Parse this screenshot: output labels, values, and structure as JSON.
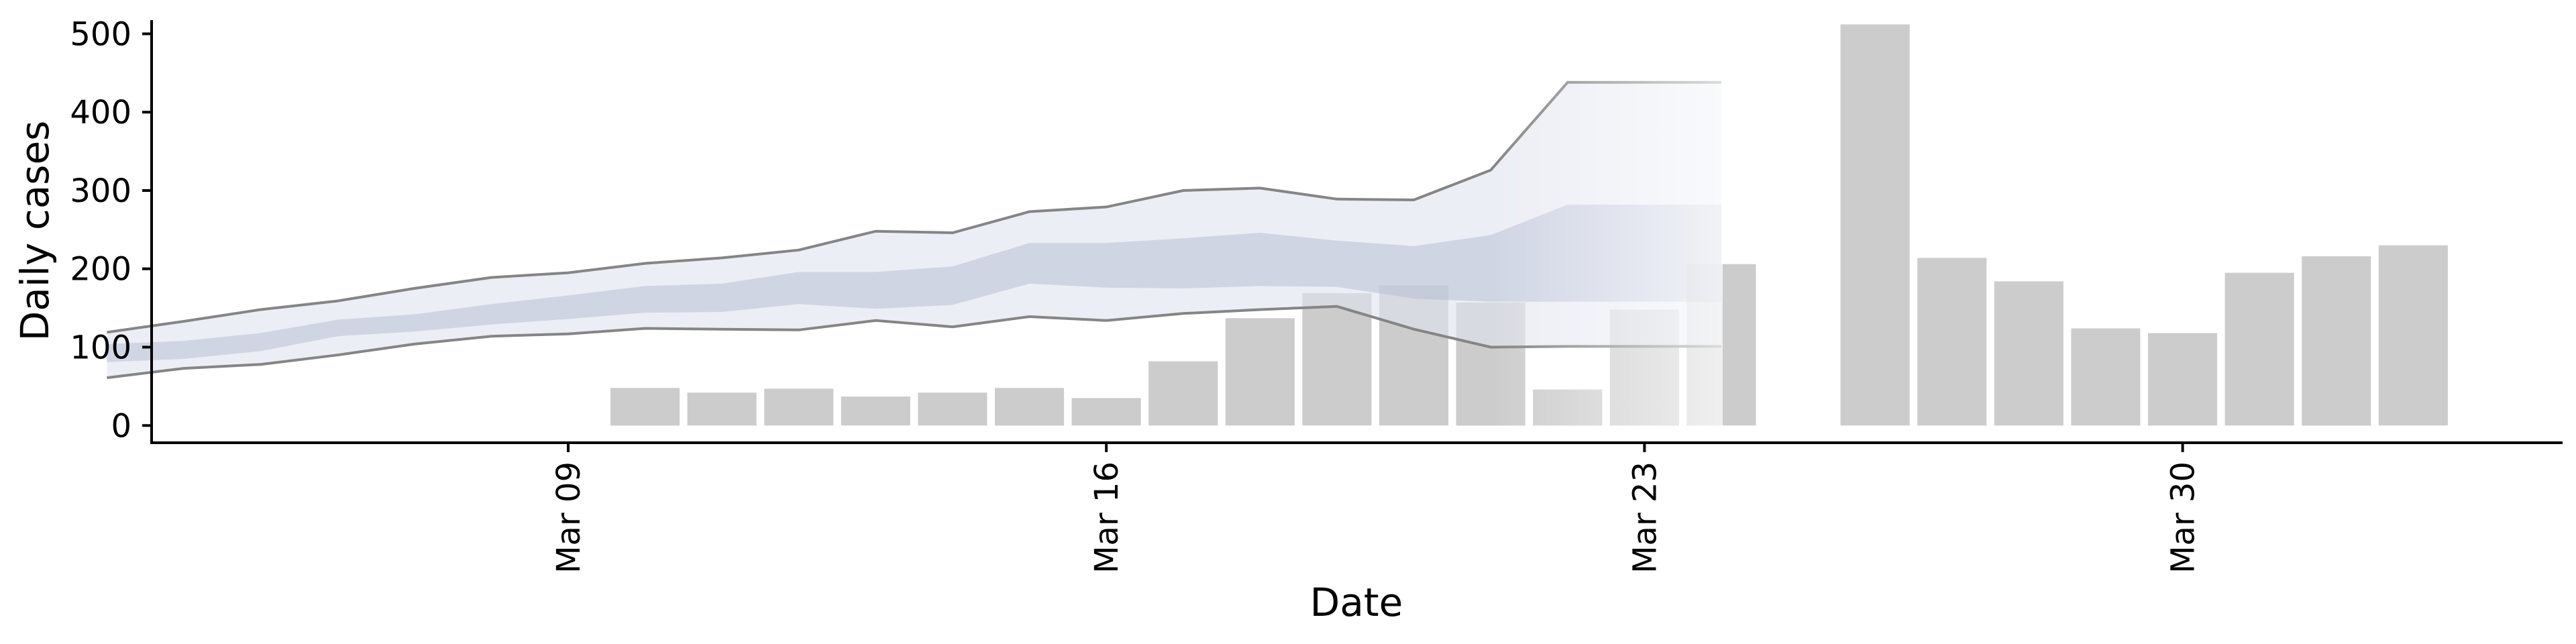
{
  "chart_data": {
    "type": "bar",
    "xlabel": "Date",
    "ylabel": "Daily cases",
    "ylim": [
      -22,
      538
    ],
    "xlim": [
      "2020-03-02",
      "2020-04-02"
    ],
    "x_ticks": [
      {
        "date": "2020-03-09",
        "label": "Mar 09"
      },
      {
        "date": "2020-03-16",
        "label": "Mar 16"
      },
      {
        "date": "2020-03-23",
        "label": "Mar 23"
      },
      {
        "date": "2020-03-30",
        "label": "Mar 30"
      }
    ],
    "y_ticks": [
      0,
      100,
      200,
      300,
      400,
      500
    ],
    "grid": false,
    "legend": "none",
    "colors": {
      "bar": "#cccccc",
      "band_outer": "#dfe2ee",
      "band_inner": "#b3bbd4",
      "bound_line": "#858585"
    },
    "bars": [
      {
        "date": "2020-03-10",
        "value": 48
      },
      {
        "date": "2020-03-11",
        "value": 42
      },
      {
        "date": "2020-03-12",
        "value": 47
      },
      {
        "date": "2020-03-13",
        "value": 37
      },
      {
        "date": "2020-03-14",
        "value": 42
      },
      {
        "date": "2020-03-15",
        "value": 48
      },
      {
        "date": "2020-03-16",
        "value": 35
      },
      {
        "date": "2020-03-17",
        "value": 82
      },
      {
        "date": "2020-03-18",
        "value": 137
      },
      {
        "date": "2020-03-19",
        "value": 169
      },
      {
        "date": "2020-03-20",
        "value": 179
      },
      {
        "date": "2020-03-21",
        "value": 157
      },
      {
        "date": "2020-03-22",
        "value": 46
      },
      {
        "date": "2020-03-23",
        "value": 148
      },
      {
        "date": "2020-03-24",
        "value": 206
      },
      {
        "date": "2020-03-26",
        "value": 512
      },
      {
        "date": "2020-03-27",
        "value": 214
      },
      {
        "date": "2020-03-28",
        "value": 184
      },
      {
        "date": "2020-03-29",
        "value": 124
      },
      {
        "date": "2020-03-30",
        "value": 118
      },
      {
        "date": "2020-03-31",
        "value": 195
      },
      {
        "date": "2020-04-01",
        "value": 216
      },
      {
        "date": "2020-04-02",
        "value": 230
      }
    ],
    "nowcast": {
      "dates": [
        "2020-03-03",
        "2020-03-04",
        "2020-03-05",
        "2020-03-06",
        "2020-03-07",
        "2020-03-08",
        "2020-03-09",
        "2020-03-10",
        "2020-03-11",
        "2020-03-12",
        "2020-03-13",
        "2020-03-14",
        "2020-03-15",
        "2020-03-16",
        "2020-03-17",
        "2020-03-18",
        "2020-03-19",
        "2020-03-20",
        "2020-03-21",
        "2020-03-22",
        "2020-03-23",
        "2020-03-24"
      ],
      "outer_upper": [
        119,
        133,
        148,
        159,
        175,
        189,
        195,
        207,
        214,
        224,
        248,
        246,
        273,
        279,
        300,
        303,
        289,
        288,
        326,
        438,
        438,
        438
      ],
      "outer_lower": [
        61,
        73,
        78,
        90,
        104,
        114,
        117,
        124,
        123,
        122,
        134,
        126,
        139,
        134,
        143,
        148,
        152,
        123,
        100,
        101,
        101,
        101
      ],
      "inner_upper": [
        104,
        108,
        118,
        135,
        142,
        155,
        166,
        178,
        181,
        196,
        196,
        203,
        233,
        233,
        239,
        246,
        236,
        229,
        243,
        282,
        282,
        282
      ],
      "inner_lower": [
        81,
        85,
        95,
        114,
        120,
        129,
        136,
        144,
        145,
        155,
        149,
        154,
        181,
        176,
        175,
        178,
        177,
        162,
        158,
        158,
        158,
        158
      ],
      "faded_from": "2020-03-21"
    }
  }
}
